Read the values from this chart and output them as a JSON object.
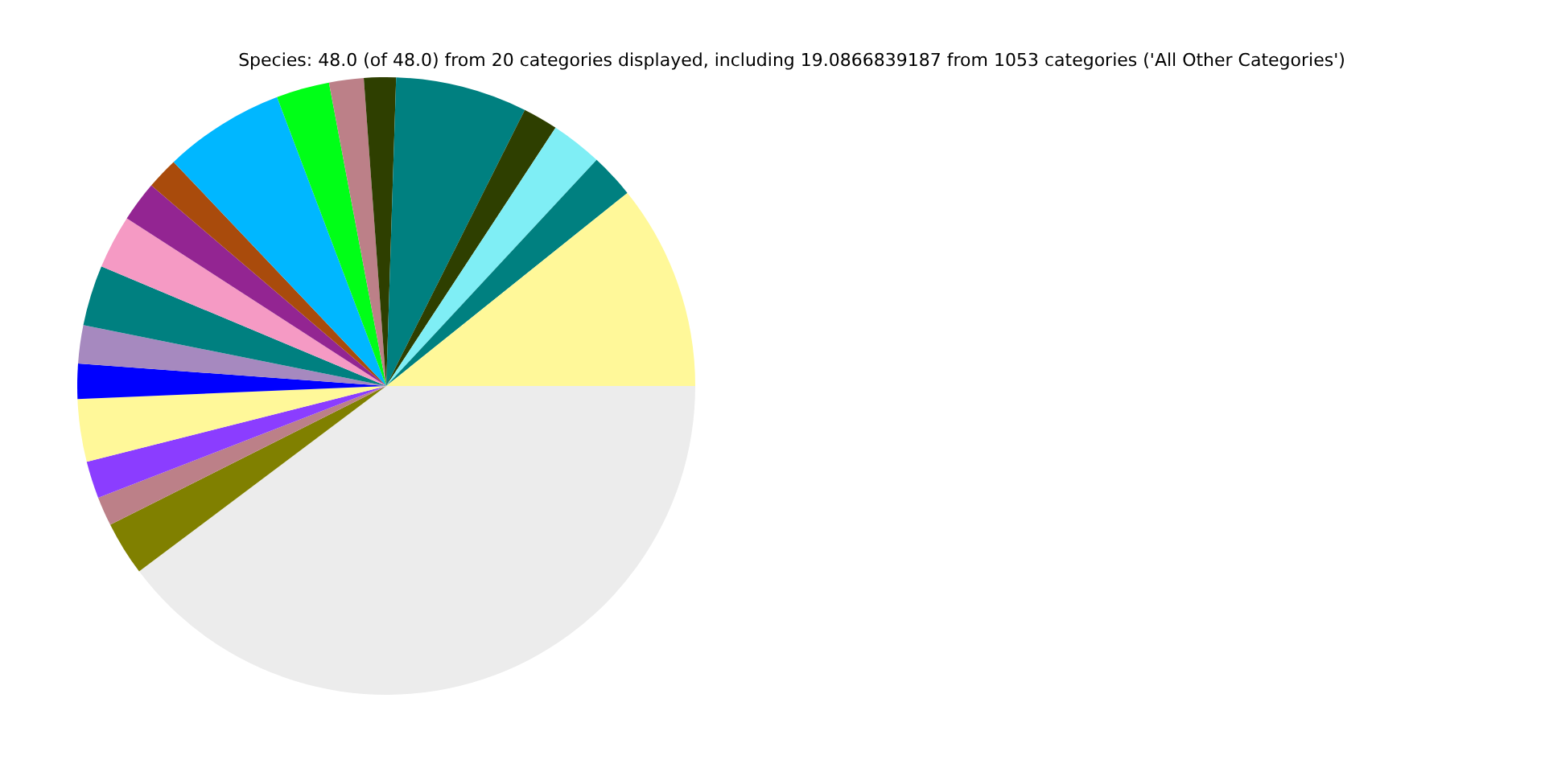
{
  "chart_data": {
    "type": "pie",
    "title": "Species: 48.0 (of 48.0) from 20 categories displayed, including 19.0866839187 from 1053 categories ('All Other Categories')",
    "categories": [
      null,
      null,
      null,
      null,
      null,
      null,
      null,
      null,
      null,
      null,
      null,
      null,
      null,
      null,
      null,
      null,
      null,
      null,
      null,
      null
    ],
    "values": [
      10.75,
      2.33,
      2.69,
      1.83,
      6.89,
      1.67,
      1.81,
      2.78,
      6.33,
      1.67,
      2.11,
      2.81,
      3.17,
      2.0,
      1.83,
      3.28,
      1.94,
      1.53,
      2.83,
      39.75
    ],
    "colors": [
      "#fff899",
      "#008080",
      "#7feef5",
      "#2e3f00",
      "#008080",
      "#2e3f00",
      "#bc8088",
      "#00ff17",
      "#00b7ff",
      "#a94b0c",
      "#932592",
      "#f59ac4",
      "#008080",
      "#a689bf",
      "#0000ff",
      "#fff899",
      "#8b3dff",
      "#bc8088",
      "#808000",
      "#ececec"
    ]
  }
}
